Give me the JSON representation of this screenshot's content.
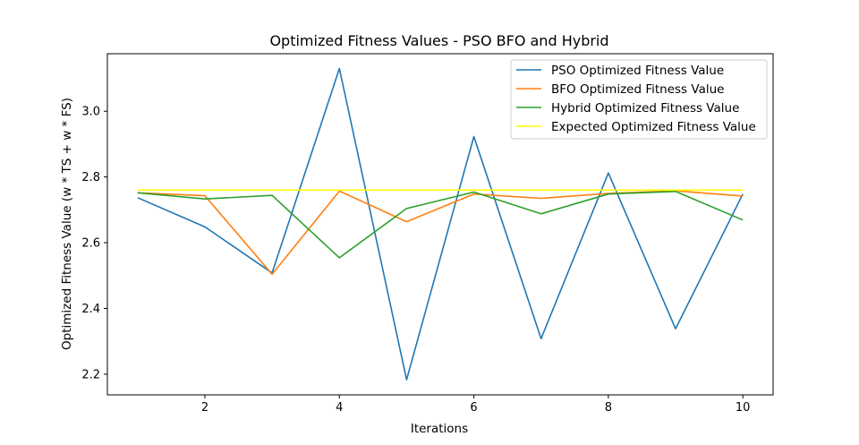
{
  "chart_data": {
    "type": "line",
    "title": "Optimized Fitness Values - PSO BFO and Hybrid",
    "xlabel": "Iterations",
    "ylabel": "Optimized Fitness Value (w * TS + w * FS)",
    "xlim": [
      0.55,
      10.45
    ],
    "ylim": [
      2.137,
      3.175
    ],
    "xticks": [
      2,
      4,
      6,
      8,
      10
    ],
    "yticks": [
      2.2,
      2.4,
      2.6,
      2.8,
      3.0
    ],
    "ytick_labels": [
      "2.2",
      "2.4",
      "2.6",
      "2.8",
      "3.0"
    ],
    "grid": false,
    "legend_position": "top-right",
    "x": [
      1,
      2,
      3,
      4,
      5,
      6,
      7,
      8,
      9,
      10
    ],
    "series": [
      {
        "name": "PSO Optimized Fitness Value",
        "color": "#1f77b4",
        "values": [
          2.737,
          2.648,
          2.508,
          3.13,
          2.183,
          2.923,
          2.308,
          2.812,
          2.338,
          2.748
        ]
      },
      {
        "name": "BFO Optimized Fitness Value",
        "color": "#ff7f0e",
        "values": [
          2.752,
          2.743,
          2.504,
          2.757,
          2.664,
          2.748,
          2.735,
          2.75,
          2.758,
          2.742
        ]
      },
      {
        "name": "Hybrid Optimized Fitness Value",
        "color": "#2ca02c",
        "values": [
          2.752,
          2.733,
          2.744,
          2.554,
          2.704,
          2.754,
          2.688,
          2.748,
          2.756,
          2.669
        ]
      },
      {
        "name": "Expected Optimized Fitness Value",
        "color": "#ffff00",
        "values": [
          2.76,
          2.76,
          2.76,
          2.76,
          2.76,
          2.76,
          2.76,
          2.76,
          2.76,
          2.76
        ]
      }
    ]
  }
}
